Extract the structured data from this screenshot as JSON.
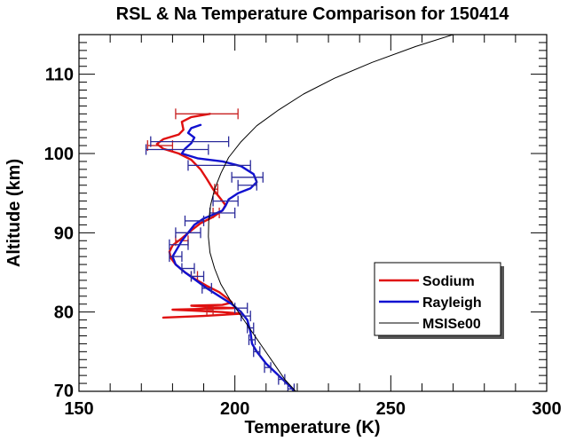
{
  "chart_data": {
    "type": "line",
    "title": "RSL & Na Temperature Comparison for 150414",
    "xlabel": "Temperature (K)",
    "ylabel": "Altitude (km)",
    "xlim": [
      150,
      300
    ],
    "ylim": [
      70,
      115
    ],
    "xticks": [
      150,
      200,
      250,
      300
    ],
    "xtick_labels": [
      "150",
      "200",
      "250",
      "300"
    ],
    "yticks": [
      70,
      80,
      90,
      100,
      110
    ],
    "ytick_labels": [
      "70",
      "80",
      "90",
      "100",
      "110"
    ],
    "x_minor_step": 10,
    "y_minor_step": 1,
    "grid": false,
    "legend_position": "lower-right",
    "series": [
      {
        "name": "Sodium",
        "color": "#e01010",
        "points": [
          [
            192,
            105
          ],
          [
            186,
            104.6
          ],
          [
            183,
            104.0
          ],
          [
            183.5,
            103.0
          ],
          [
            182,
            102.4
          ],
          [
            177,
            101.8
          ],
          [
            175,
            101.2
          ],
          [
            177,
            100.6
          ],
          [
            182,
            100.0
          ],
          [
            186,
            99.2
          ],
          [
            189,
            98.0
          ],
          [
            191,
            96.8
          ],
          [
            193,
            95.5
          ],
          [
            195,
            94.5
          ],
          [
            197,
            93.5
          ],
          [
            196,
            92.8
          ],
          [
            193,
            92.0
          ],
          [
            189,
            91.2
          ],
          [
            186,
            90.3
          ],
          [
            183,
            89.3
          ],
          [
            180,
            88.4
          ],
          [
            179,
            87.6
          ],
          [
            179.5,
            86.8
          ],
          [
            181,
            86.0
          ],
          [
            184,
            85.0
          ],
          [
            187,
            84.2
          ],
          [
            191,
            83.3
          ],
          [
            195,
            82.5
          ],
          [
            198,
            81.6
          ],
          [
            199,
            81.2
          ],
          [
            196,
            80.9
          ],
          [
            186,
            80.8
          ],
          [
            193,
            80.6
          ],
          [
            200,
            80.5
          ],
          [
            190,
            80.4
          ],
          [
            180,
            80.3
          ],
          [
            186,
            80.2
          ],
          [
            196,
            80.0
          ],
          [
            202,
            79.8
          ],
          [
            190,
            79.5
          ],
          [
            177,
            79.3
          ]
        ],
        "error_bars": [
          {
            "y": 105,
            "xmin": 181,
            "xmax": 201
          },
          {
            "y": 101,
            "xmin": 172,
            "xmax": 180
          },
          {
            "y": 95.5,
            "xmin": 193.5,
            "xmax": 194.5
          },
          {
            "y": 92.5,
            "xmin": 193,
            "xmax": 195
          },
          {
            "y": 89,
            "xmin": 181,
            "xmax": 185
          },
          {
            "y": 84.5,
            "xmin": 186,
            "xmax": 188
          },
          {
            "y": 80.2,
            "xmin": 191,
            "xmax": 193
          }
        ]
      },
      {
        "name": "Rayleigh",
        "color": "#1010d0",
        "points": [
          [
            189,
            103.6
          ],
          [
            186,
            103.2
          ],
          [
            185,
            102.6
          ],
          [
            187,
            102.0
          ],
          [
            186,
            101.3
          ],
          [
            184,
            100.6
          ],
          [
            183,
            100.0
          ],
          [
            188,
            99.4
          ],
          [
            196,
            99.0
          ],
          [
            202,
            98.4
          ],
          [
            206,
            97.4
          ],
          [
            207,
            96.4
          ],
          [
            205,
            95.6
          ],
          [
            201,
            95.0
          ],
          [
            198,
            94.2
          ],
          [
            197,
            93.4
          ],
          [
            196,
            92.8
          ],
          [
            193,
            92.3
          ],
          [
            190,
            91.8
          ],
          [
            187,
            91.0
          ],
          [
            185,
            90.0
          ],
          [
            183,
            89.0
          ],
          [
            181.5,
            88.0
          ],
          [
            180,
            87.0
          ],
          [
            181,
            86.0
          ],
          [
            184,
            85.0
          ],
          [
            187.5,
            84.0
          ],
          [
            191,
            83.0
          ],
          [
            195,
            82.0
          ],
          [
            199,
            81.0
          ],
          [
            202,
            80.0
          ],
          [
            204,
            79.0
          ],
          [
            205,
            77.5
          ],
          [
            205.5,
            76.0
          ],
          [
            207,
            75.0
          ],
          [
            210,
            73.5
          ],
          [
            214,
            72.0
          ],
          [
            218,
            70.5
          ],
          [
            219,
            70.0
          ]
        ],
        "error_bars": [
          {
            "y": 101.5,
            "xmin": 173,
            "xmax": 198
          },
          {
            "y": 100.5,
            "xmin": 171.5,
            "xmax": 191.5
          },
          {
            "y": 98.5,
            "xmin": 185,
            "xmax": 205
          },
          {
            "y": 97.0,
            "xmin": 199,
            "xmax": 209
          },
          {
            "y": 96.0,
            "xmin": 201,
            "xmax": 207
          },
          {
            "y": 94.0,
            "xmin": 193,
            "xmax": 201
          },
          {
            "y": 92.5,
            "xmin": 192,
            "xmax": 200
          },
          {
            "y": 91.5,
            "xmin": 184,
            "xmax": 190
          },
          {
            "y": 90.0,
            "xmin": 181,
            "xmax": 189
          },
          {
            "y": 88.5,
            "xmin": 179,
            "xmax": 185
          },
          {
            "y": 87.0,
            "xmin": 179,
            "xmax": 183
          },
          {
            "y": 85.5,
            "xmin": 183,
            "xmax": 187
          },
          {
            "y": 84.5,
            "xmin": 186,
            "xmax": 190
          },
          {
            "y": 83.0,
            "xmin": 189.5,
            "xmax": 192.5
          },
          {
            "y": 80.5,
            "xmin": 200,
            "xmax": 204
          },
          {
            "y": 79.5,
            "xmin": 202,
            "xmax": 205
          },
          {
            "y": 78.0,
            "xmin": 204,
            "xmax": 206
          },
          {
            "y": 76.5,
            "xmin": 204.5,
            "xmax": 206.5
          },
          {
            "y": 75.0,
            "xmin": 206,
            "xmax": 208
          },
          {
            "y": 73.0,
            "xmin": 209.5,
            "xmax": 211.5
          },
          {
            "y": 71.5,
            "xmin": 214,
            "xmax": 216
          },
          {
            "y": 70.3,
            "xmin": 217,
            "xmax": 219
          }
        ]
      },
      {
        "name": "MSISe00",
        "color": "#000000",
        "points": [
          [
            270,
            115
          ],
          [
            258,
            113.5
          ],
          [
            244,
            111.5
          ],
          [
            232,
            109.5
          ],
          [
            222,
            107.5
          ],
          [
            214,
            105.5
          ],
          [
            207,
            103.5
          ],
          [
            202,
            101.5
          ],
          [
            198,
            99.5
          ],
          [
            195.5,
            97.5
          ],
          [
            193.5,
            95.5
          ],
          [
            192.2,
            93.5
          ],
          [
            191.6,
            91.5
          ],
          [
            191.5,
            89.5
          ],
          [
            192,
            87.5
          ],
          [
            193.5,
            85.5
          ],
          [
            195.5,
            83.5
          ],
          [
            198.5,
            81.5
          ],
          [
            202,
            79.5
          ],
          [
            205.5,
            77.5
          ],
          [
            209,
            75.5
          ],
          [
            212.5,
            73.5
          ],
          [
            216,
            71.5
          ],
          [
            220,
            69.8
          ]
        ]
      }
    ]
  }
}
